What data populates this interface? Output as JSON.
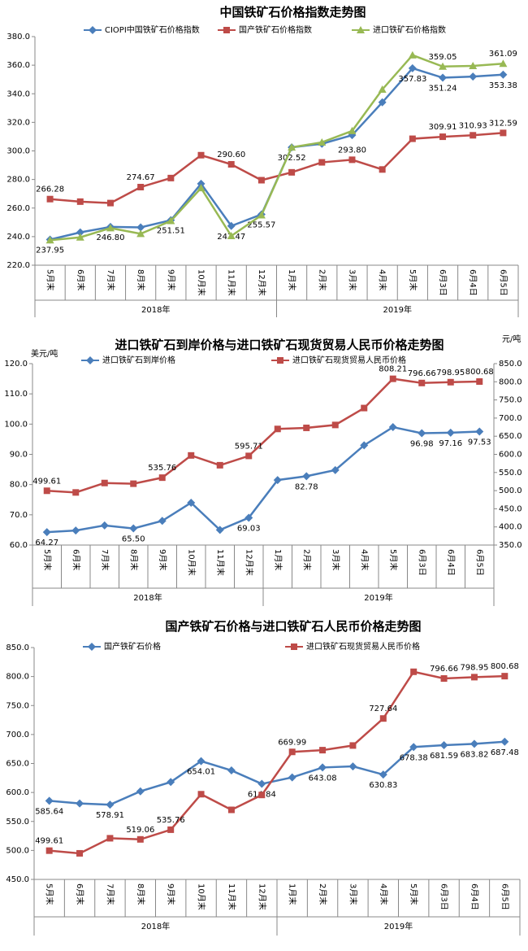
{
  "chart_data": [
    {
      "type": "line",
      "title": "中国铁矿石价格指数走势图",
      "categories": [
        "5月末",
        "6月末",
        "7月末",
        "8月末",
        "9月末",
        "10月末",
        "11月末",
        "12月末",
        "1月末",
        "2月末",
        "3月末",
        "4月末",
        "5月末",
        "6月3日",
        "6月4日",
        "6月5日"
      ],
      "x_groups": [
        "2018年",
        "2019年"
      ],
      "ylim": [
        220,
        380
      ],
      "yticks": [
        {
          "value": 220,
          "label": "220.0"
        },
        {
          "value": 240,
          "label": "240.0"
        },
        {
          "value": 260,
          "label": "260.0"
        },
        {
          "value": 280,
          "label": "280.0"
        },
        {
          "value": 300,
          "label": "300.0"
        },
        {
          "value": 320,
          "label": "320.0"
        },
        {
          "value": 340,
          "label": "340.0"
        },
        {
          "value": 360,
          "label": "360.0"
        },
        {
          "value": 380,
          "label": "380.0"
        }
      ],
      "series": [
        {
          "name": "CIOPI中国铁矿石价格指数",
          "color": "#4a7ebb",
          "marker": "diamond",
          "values": [
            237.95,
            243,
            246.8,
            246.5,
            251.51,
            277,
            247.47,
            255.57,
            302.52,
            305,
            311,
            334,
            357.83,
            351.24,
            352,
            353.38
          ],
          "value_labels": [
            "237.95",
            null,
            "246.80",
            null,
            "251.51",
            null,
            "247.47",
            "255.57",
            "302.52",
            null,
            null,
            null,
            "357.83",
            "351.24",
            null,
            "353.38"
          ]
        },
        {
          "name": "国产铁矿石价格指数",
          "color": "#be4b48",
          "marker": "square",
          "values": [
            266.28,
            264.5,
            263.5,
            274.67,
            281,
            297,
            290.6,
            279.5,
            285,
            292,
            293.8,
            287,
            308.5,
            309.91,
            310.93,
            312.59
          ],
          "value_labels": [
            "266.28",
            null,
            null,
            "274.67",
            null,
            null,
            "290.60",
            null,
            null,
            null,
            "293.80",
            null,
            null,
            "309.91",
            "310.93",
            "312.59"
          ]
        },
        {
          "name": "进口铁矿石价格指数",
          "color": "#98b954",
          "marker": "triangle",
          "values": [
            237.5,
            239.5,
            246,
            242,
            251,
            274,
            240.5,
            255,
            302.5,
            306,
            314,
            343,
            367,
            359.05,
            359.5,
            361.09
          ],
          "value_labels": [
            null,
            null,
            null,
            null,
            null,
            null,
            null,
            null,
            null,
            null,
            null,
            null,
            null,
            "359.05",
            null,
            "361.09"
          ]
        }
      ]
    },
    {
      "type": "line",
      "title": "进口铁矿石到岸价格与进口铁矿石现货贸易人民币价格走势图",
      "y_label": "美元/吨",
      "y2_label": "元/吨",
      "categories": [
        "5月末",
        "6月末",
        "7月末",
        "8月末",
        "9月末",
        "10月末",
        "11月末",
        "12月末",
        "1月末",
        "2月末",
        "3月末",
        "4月末",
        "5月末",
        "6月3日",
        "6月4日",
        "6月5日"
      ],
      "x_groups": [
        "2018年",
        "2019年"
      ],
      "ylim": [
        60,
        120
      ],
      "yticks": [
        {
          "value": 60,
          "label": "60.0"
        },
        {
          "value": 70,
          "label": "70.0"
        },
        {
          "value": 80,
          "label": "80.0"
        },
        {
          "value": 90,
          "label": "90.0"
        },
        {
          "value": 100,
          "label": "100.0"
        },
        {
          "value": 110,
          "label": "110.0"
        },
        {
          "value": 120,
          "label": "120.0"
        }
      ],
      "y2lim": [
        350,
        850
      ],
      "y2ticks": [
        {
          "value": 350,
          "label": "350.0"
        },
        {
          "value": 400,
          "label": "400.0"
        },
        {
          "value": 450,
          "label": "450.0"
        },
        {
          "value": 500,
          "label": "500.0"
        },
        {
          "value": 550,
          "label": "550.0"
        },
        {
          "value": 600,
          "label": "600.0"
        },
        {
          "value": 650,
          "label": "650.0"
        },
        {
          "value": 700,
          "label": "700.0"
        },
        {
          "value": 750,
          "label": "750.0"
        },
        {
          "value": 800,
          "label": "800.0"
        },
        {
          "value": 850,
          "label": "850.0"
        }
      ],
      "series": [
        {
          "name": "进口铁矿石到岸价格",
          "color": "#4a7ebb",
          "marker": "diamond",
          "values": [
            64.27,
            64.8,
            66.5,
            65.5,
            68,
            74,
            65,
            69.03,
            81.5,
            82.78,
            84.8,
            93,
            99,
            96.98,
            97.16,
            97.53
          ],
          "value_labels": [
            "64.27",
            null,
            null,
            "65.50",
            null,
            null,
            null,
            "69.03",
            null,
            "82.78",
            null,
            null,
            null,
            "96.98",
            "97.16",
            "97.53"
          ]
        },
        {
          "name": "进口铁矿石现货贸易人民币价格",
          "color": "#be4b48",
          "marker": "square",
          "axis": "y2",
          "values": [
            499.61,
            495,
            521,
            519.06,
            535.76,
            597,
            570,
            595.71,
            669.99,
            673,
            681,
            727.64,
            808.21,
            796.66,
            798.95,
            800.68
          ],
          "value_labels": [
            "499.61",
            null,
            null,
            null,
            "535.76",
            null,
            null,
            "595.71",
            null,
            null,
            null,
            null,
            "808.21",
            "796.66",
            "798.95",
            "800.68"
          ]
        }
      ]
    },
    {
      "type": "line",
      "title": "国产铁矿石价格与进口铁矿石人民币价格走势图",
      "categories": [
        "5月末",
        "6月末",
        "7月末",
        "8月末",
        "9月末",
        "10月末",
        "11月末",
        "12月末",
        "1月末",
        "2月末",
        "3月末",
        "4月末",
        "5月末",
        "6月3日",
        "6月4日",
        "6月5日"
      ],
      "x_groups": [
        "2018年",
        "2019年"
      ],
      "ylim": [
        450,
        850
      ],
      "yticks": [
        {
          "value": 450,
          "label": "450.0"
        },
        {
          "value": 500,
          "label": "500.0"
        },
        {
          "value": 550,
          "label": "550.0"
        },
        {
          "value": 600,
          "label": "600.0"
        },
        {
          "value": 650,
          "label": "650.0"
        },
        {
          "value": 700,
          "label": "700.0"
        },
        {
          "value": 750,
          "label": "750.0"
        },
        {
          "value": 800,
          "label": "800.0"
        },
        {
          "value": 850,
          "label": "850.0"
        }
      ],
      "series": [
        {
          "name": "国产铁矿石价格",
          "color": "#4a7ebb",
          "marker": "diamond",
          "values": [
            585.64,
            581,
            578.91,
            602,
            618,
            654.01,
            638,
            614.84,
            626,
            643.08,
            645,
            630.83,
            678.38,
            681.59,
            683.82,
            687.48
          ],
          "value_labels": [
            "585.64",
            null,
            "578.91",
            null,
            null,
            "654.01",
            null,
            "614.84",
            null,
            "643.08",
            null,
            "630.83",
            "678.38",
            "681.59",
            "683.82",
            "687.48"
          ]
        },
        {
          "name": "进口铁矿石现货贸易人民币价格",
          "color": "#be4b48",
          "marker": "square",
          "values": [
            499.61,
            495,
            521,
            519.06,
            535.76,
            597,
            570,
            595.71,
            669.99,
            673,
            681,
            727.64,
            808.21,
            796.66,
            798.95,
            800.68
          ],
          "value_labels": [
            "499.61",
            null,
            null,
            "519.06",
            "535.76",
            null,
            null,
            null,
            "669.99",
            null,
            null,
            "727.64",
            null,
            "796.66",
            "798.95",
            "800.68"
          ]
        }
      ]
    }
  ]
}
